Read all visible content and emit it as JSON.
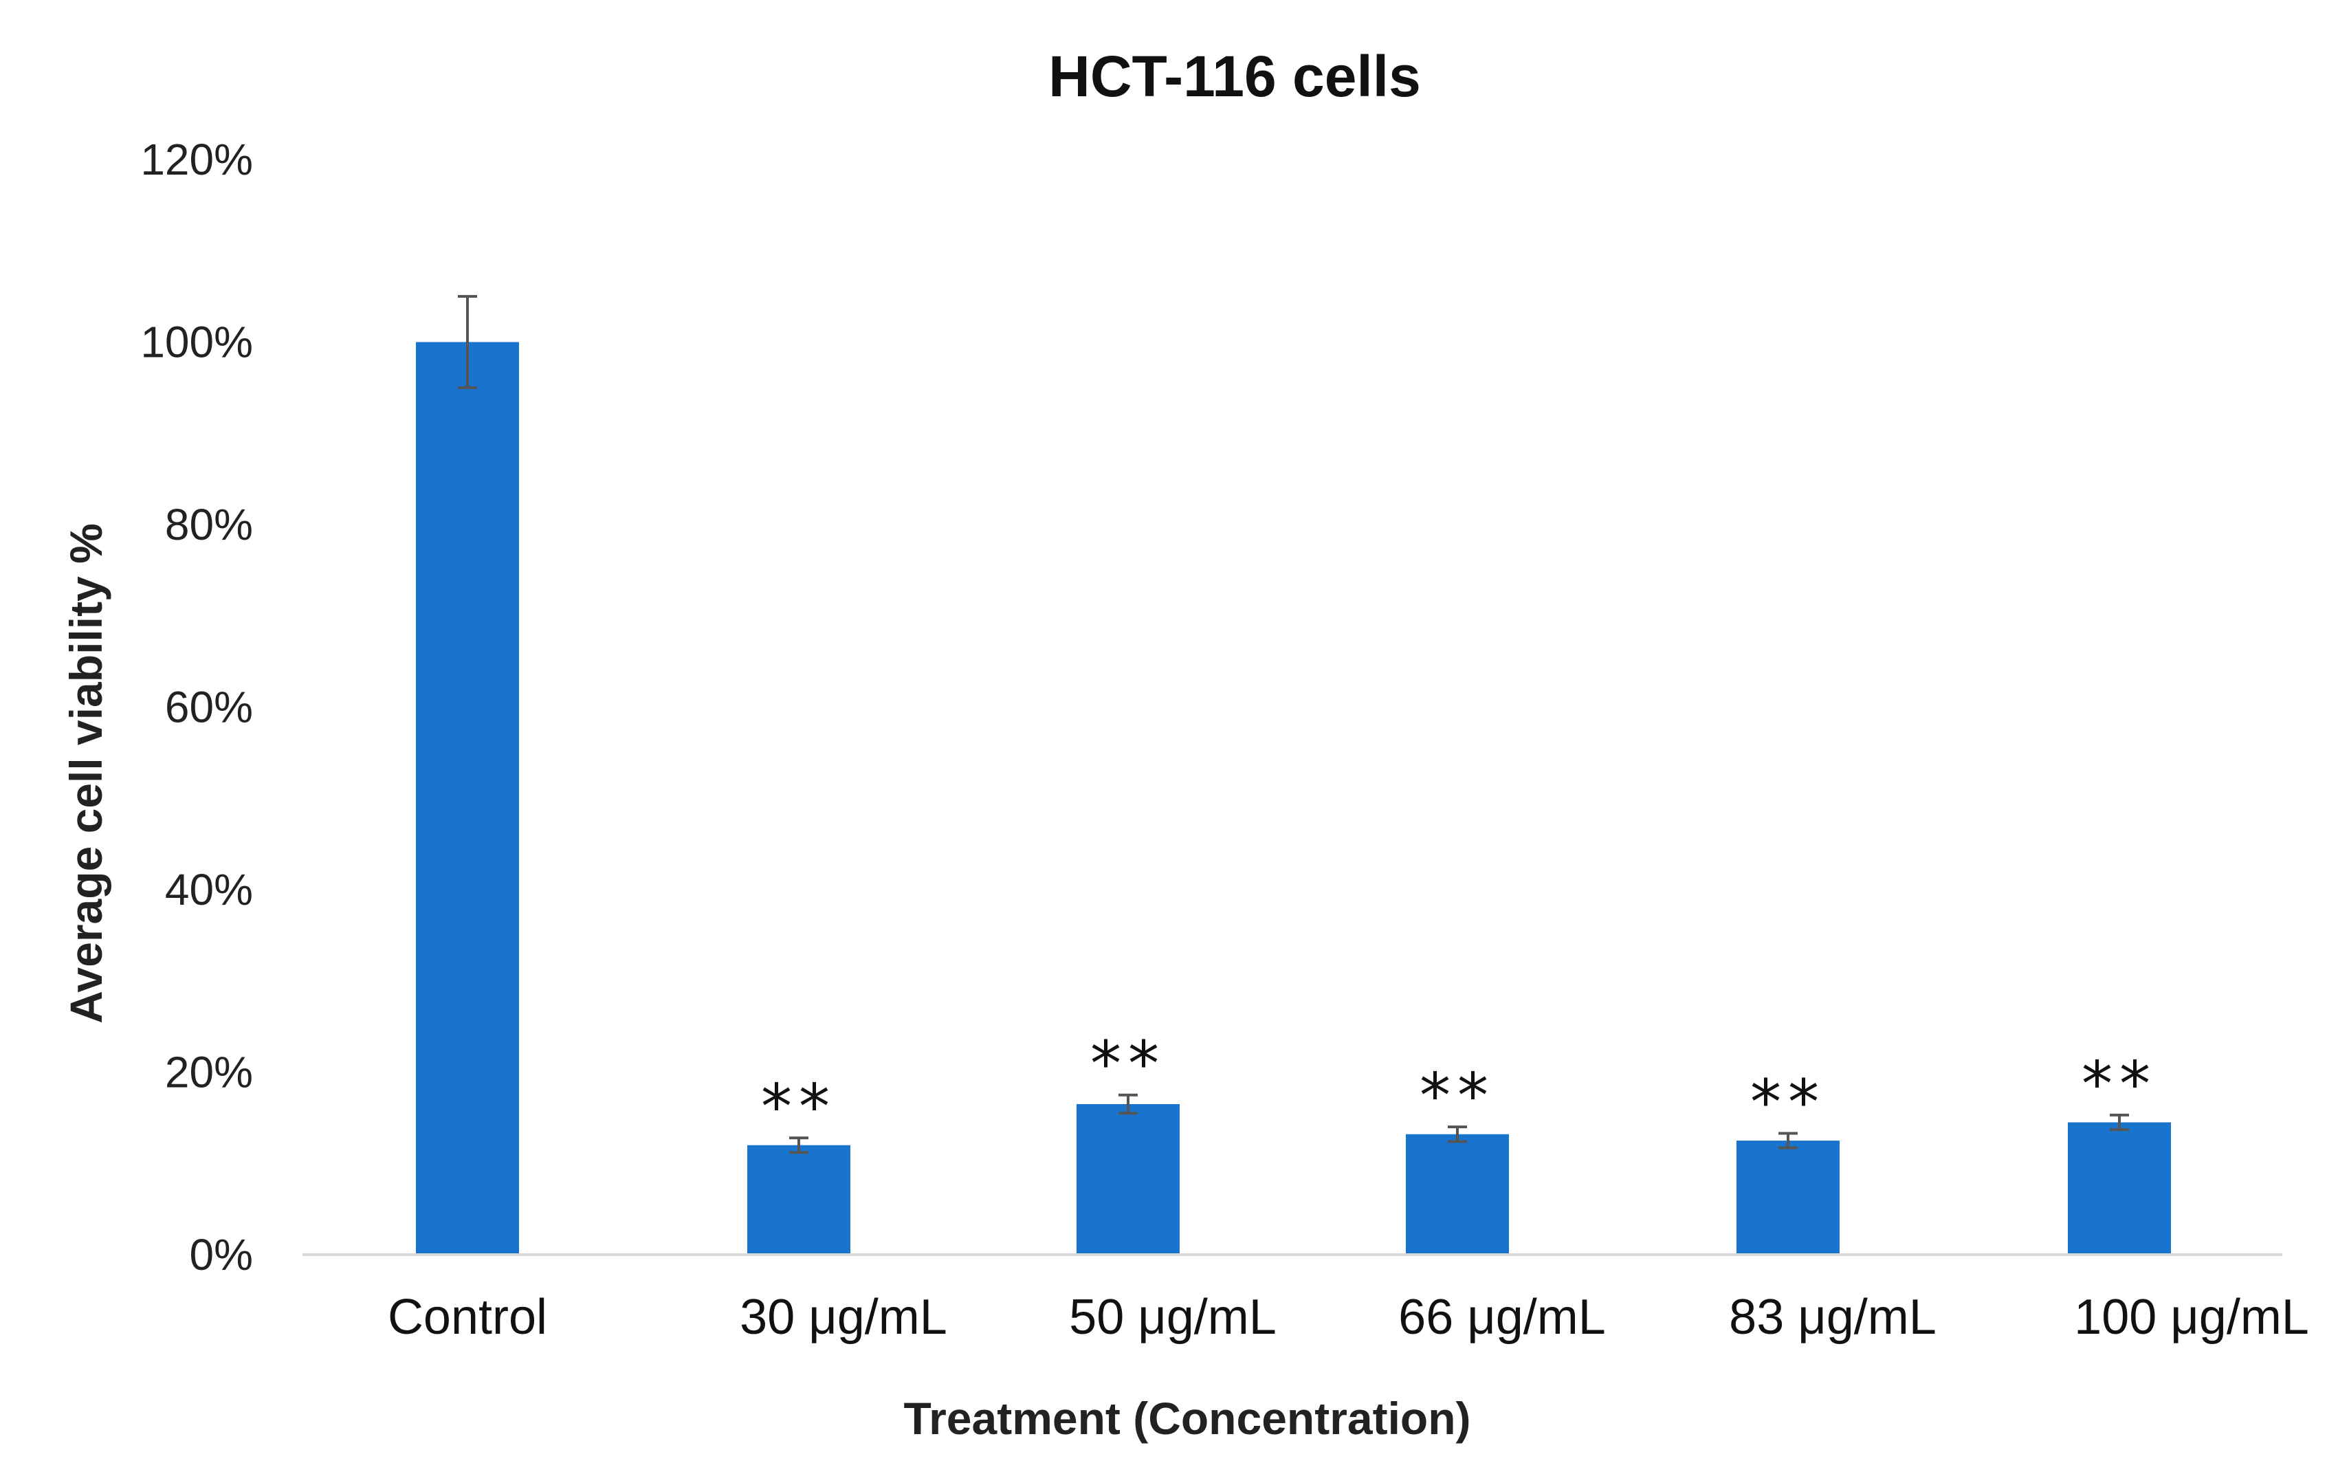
{
  "chart_data": {
    "type": "bar",
    "title": "HCT-116 cells",
    "xlabel": "Treatment (Concentration)",
    "ylabel": "Average cell viability %",
    "categories": [
      "Control",
      "30 μg/mL",
      "50 μg/mL",
      "66 μg/mL",
      "83 μg/mL",
      "100 μg/mL"
    ],
    "values": [
      100,
      12,
      16.5,
      13.2,
      12.5,
      14.5
    ],
    "errors": [
      5,
      0.8,
      1.0,
      0.8,
      0.8,
      0.8
    ],
    "annotations": [
      "",
      "**",
      "**",
      "**",
      "**",
      "**"
    ],
    "ylim": [
      0,
      120
    ],
    "yticks": [
      0,
      20,
      40,
      60,
      80,
      100,
      120
    ],
    "ytick_labels": [
      "0%",
      "20%",
      "40%",
      "60%",
      "80%",
      "100%",
      "120%"
    ],
    "grid": false,
    "legend": "none",
    "bar_color": "#1874CD",
    "error_bar_color": "#555555",
    "axis_color": "#d9d9d9"
  }
}
